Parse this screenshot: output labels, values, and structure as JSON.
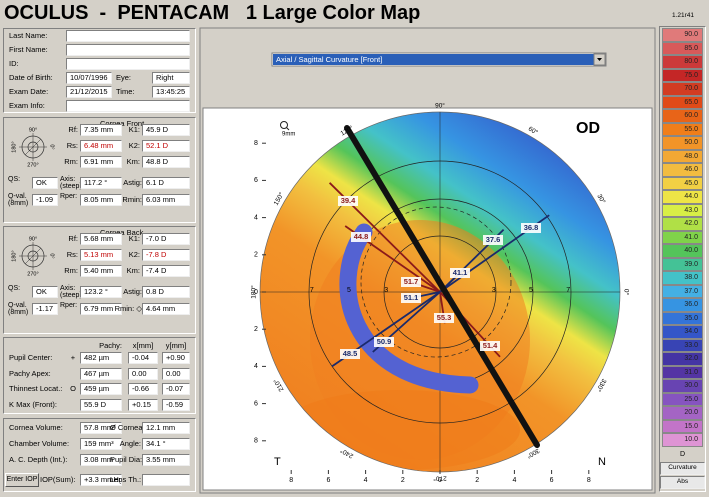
{
  "header": {
    "title": "OCULUS  -  PENTACAM   1 Large Color Map",
    "version": "1.21r41"
  },
  "patient": {
    "rows": [
      [
        {
          "label": "Last Name:"
        }
      ],
      [
        {
          "label": "First Name:"
        }
      ],
      [
        {
          "label": "ID:"
        }
      ],
      [
        {
          "label": "Date of Birth:",
          "value": "10/07/1996"
        },
        {
          "label": "Eye:",
          "value": "Right"
        }
      ],
      [
        {
          "label": "Exam Date:",
          "value": "21/12/2015"
        },
        {
          "label": "Time:",
          "value": "13:45:25"
        }
      ],
      [
        {
          "label": "Exam Info:"
        }
      ]
    ]
  },
  "orientation": [
    "90°",
    "0°",
    "270°",
    "180°"
  ],
  "cornea_front": {
    "title": "Cornea Front",
    "rows": [
      [
        {
          "label": "Rf:",
          "value": "7.35 mm"
        },
        {
          "label": "K1:",
          "value": "45.9 D"
        }
      ],
      [
        {
          "label": "Rs:",
          "value": "6.48 mm",
          "color": "#c00000"
        },
        {
          "label": "K2:",
          "value": "52.1 D",
          "color": "#c00000"
        }
      ],
      [
        {
          "label": "Rm:",
          "value": "6.91 mm"
        },
        {
          "label": "Km:",
          "value": "48.8 D"
        }
      ],
      [
        {
          "label": "QS:",
          "value": "OK"
        },
        {
          "label": "Axis: (steep)",
          "value": "117.2 °"
        },
        {
          "label": "Astig:",
          "value": "6.1 D"
        }
      ],
      [
        {
          "label": "Q-val. (8mm)",
          "value": "-1.09"
        },
        {
          "label": "Rper:",
          "value": "8.05 mm"
        },
        {
          "label": "Rmin:",
          "value": "6.03 mm"
        }
      ]
    ]
  },
  "cornea_back": {
    "title": "Cornea Back",
    "rows": [
      [
        {
          "label": "Rf:",
          "value": "5.68 mm"
        },
        {
          "label": "K1:",
          "value": "-7.0 D"
        }
      ],
      [
        {
          "label": "Rs:",
          "value": "5.13 mm",
          "color": "#c00000"
        },
        {
          "label": "K2:",
          "value": "-7.8 D",
          "color": "#c00000"
        }
      ],
      [
        {
          "label": "Rm:",
          "value": "5.40 mm"
        },
        {
          "label": "Km:",
          "value": "-7.4 D"
        }
      ],
      [
        {
          "label": "QS:",
          "value": "OK"
        },
        {
          "label": "Axis: (steep)",
          "value": "123.2 °"
        },
        {
          "label": "Astig:",
          "value": "0.8 D"
        }
      ],
      [
        {
          "label": "Q-val. (8mm)",
          "value": "-1.17"
        },
        {
          "label": "Rper:",
          "value": "6.79 mm"
        },
        {
          "label": "Rmin: ◇",
          "value": "4.64 mm"
        }
      ]
    ]
  },
  "pachy": {
    "headers": [
      "Pachy:",
      "x[mm]",
      "y[mm]"
    ],
    "rows": [
      {
        "label": "Pupil Center:",
        "marker": "+",
        "values": [
          "482 µm",
          "-0.04",
          "+0.90"
        ]
      },
      {
        "label": "Pachy Apex:",
        "values": [
          "467 µm",
          "0.00",
          "0.00"
        ]
      },
      {
        "label": "Thinnest Locat.:",
        "marker": "O",
        "values": [
          "459 µm",
          "-0.66",
          "-0.07"
        ]
      },
      {
        "label": "K Max (Front):",
        "values": [
          "55.9 D",
          "+0.15",
          "-0.59"
        ]
      }
    ]
  },
  "volume": {
    "rows": [
      [
        {
          "label": "Cornea Volume:",
          "value": "57.8 mm³"
        },
        {
          "label": "Ø Cornea:",
          "value": "12.1 mm"
        }
      ],
      [
        {
          "label": "Chamber Volume:",
          "value": "159 mm³"
        },
        {
          "label": "Angle:",
          "value": "34.1 °"
        }
      ],
      [
        {
          "label": "A. C. Depth (Int.):",
          "value": "3.08 mm"
        },
        {
          "label": "Pupil Dia:",
          "value": "3.55 mm"
        }
      ]
    ],
    "button": "Enter IOP",
    "iop": {
      "label": "IOP(Sum):",
      "value": "+3.3 mmHg"
    },
    "lens": {
      "label": "Lens Th.:"
    }
  },
  "map": {
    "dropdown": "Axial / Sagittal Curvature [Front]",
    "eye": "OD",
    "zoom": "9mm",
    "left": "T",
    "right": "N",
    "xticks": [
      {
        "value": -8,
        "label": "8"
      },
      {
        "value": -6,
        "label": "6"
      },
      {
        "value": -4,
        "label": "4"
      },
      {
        "value": -2,
        "label": "2"
      },
      0,
      2,
      4,
      6,
      8
    ],
    "yticks": [
      8,
      6,
      4,
      2,
      0,
      {
        "value": -2,
        "label": "2"
      },
      {
        "value": -4,
        "label": "4"
      },
      {
        "value": -6,
        "label": "6"
      },
      {
        "value": -8,
        "label": "8"
      }
    ],
    "rings": [
      3,
      5,
      7
    ],
    "angles": [
      "90°",
      "60°",
      "30°",
      "0°",
      "330°",
      "300°",
      "270°",
      "240°",
      "210°",
      "180°",
      "150°",
      "120°"
    ],
    "labels": [
      {
        "text": "39.4",
        "color": "#8b1a1a"
      },
      {
        "text": "44.8",
        "color": "#8b1a1a"
      },
      {
        "text": "37.6",
        "color": "#1a2a6b"
      },
      {
        "text": "36.8",
        "color": "#1a2a6b"
      },
      {
        "text": "51.7",
        "color": "#8b1a1a"
      },
      {
        "text": "41.1",
        "color": "#1a2a6b"
      },
      {
        "text": "51.1",
        "color": "#1a2a6b"
      },
      {
        "text": "55.3",
        "color": "#8b1a1a"
      },
      {
        "text": "51.4",
        "color": "#8b1a1a"
      },
      {
        "text": "48.5",
        "color": "#1a2a6b"
      },
      {
        "text": "50.9",
        "color": "#1a2a6b"
      }
    ]
  },
  "scale": {
    "steps": [
      {
        "label": "90.0",
        "color": "#e07a7a"
      },
      {
        "label": "85.0",
        "color": "#d85a5a"
      },
      {
        "label": "80.0",
        "color": "#cc3a3a"
      },
      {
        "label": "75.0",
        "color": "#c42626"
      },
      {
        "label": "70.0",
        "color": "#d23c22"
      },
      {
        "label": "65.0",
        "color": "#e04a18"
      },
      {
        "label": "60.0",
        "color": "#e86418"
      },
      {
        "label": "55.0",
        "color": "#f07e1a"
      },
      {
        "label": "50.0",
        "color": "#f29428"
      },
      {
        "label": "48.0",
        "color": "#f2a834"
      },
      {
        "label": "46.0",
        "color": "#f2bc40"
      },
      {
        "label": "45.0",
        "color": "#f2d044"
      },
      {
        "label": "44.0",
        "color": "#eee446"
      },
      {
        "label": "43.0",
        "color": "#d8ee46"
      },
      {
        "label": "42.0",
        "color": "#b0e046"
      },
      {
        "label": "41.0",
        "color": "#80d24a"
      },
      {
        "label": "40.0",
        "color": "#54c45a"
      },
      {
        "label": "39.0",
        "color": "#44c296"
      },
      {
        "label": "38.0",
        "color": "#44c2c8"
      },
      {
        "label": "37.0",
        "color": "#44b0e4"
      },
      {
        "label": "36.0",
        "color": "#3694e2"
      },
      {
        "label": "35.0",
        "color": "#3474d8"
      },
      {
        "label": "34.0",
        "color": "#3456c8"
      },
      {
        "label": "33.0",
        "color": "#3844b4"
      },
      {
        "label": "32.0",
        "color": "#4434a4"
      },
      {
        "label": "31.0",
        "color": "#5434a4"
      },
      {
        "label": "30.0",
        "color": "#6844b2"
      },
      {
        "label": "25.0",
        "color": "#8654c0"
      },
      {
        "label": "20.0",
        "color": "#a464c4"
      },
      {
        "label": "15.0",
        "color": "#c274c8"
      },
      {
        "label": "10.0",
        "color": "#de94d4"
      }
    ],
    "unit": "D",
    "kind": "Curvature",
    "mode": "Abs"
  }
}
